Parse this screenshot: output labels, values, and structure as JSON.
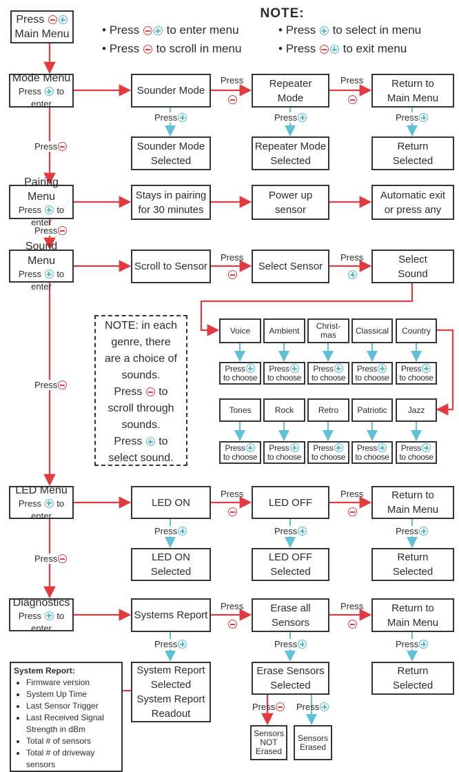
{
  "note": {
    "title": "NOTE:",
    "items": [
      {
        "pre": "Press",
        "icons": [
          "minus",
          "plus"
        ],
        "post": "to enter menu"
      },
      {
        "pre": "Press",
        "icons": [
          "plus"
        ],
        "post": "to select in menu"
      },
      {
        "pre": "Press",
        "icons": [
          "minus"
        ],
        "post": "to scroll in menu"
      },
      {
        "pre": "Press",
        "icons": [
          "minus",
          "plus"
        ],
        "post": "to exit menu"
      }
    ]
  },
  "main_menu": {
    "line1": "Press",
    "line2": "Main Menu"
  },
  "press": "Press",
  "to_enter": "to enter",
  "menus": {
    "mode": "Mode Menu",
    "pairing": "Pairing Menu",
    "sound": "Sound Menu",
    "led": "LED Menu",
    "diagnostics": "Diagnostics"
  },
  "mode_row": [
    "Sounder Mode",
    "Repeater\nMode",
    "Return to\nMain Menu"
  ],
  "mode_selected": [
    "Sounder Mode\nSelected",
    "Repeater Mode\nSelected",
    "Return\nSelected"
  ],
  "pairing_row": [
    "Stays in pairing\nfor 30 minutes",
    "Power up\nsensor",
    "Automatic exit\nor press any"
  ],
  "sound_row": [
    "Scroll to Sensor",
    "Select Sensor",
    "Select\nSound"
  ],
  "genres_row1": [
    "Voice",
    "Ambient",
    "Christ-\nmas",
    "Classical",
    "Country"
  ],
  "genres_row2": [
    "Tones",
    "Rock",
    "Retro",
    "Patriotic",
    "Jazz"
  ],
  "to_choose": "to choose",
  "genre_note": {
    "l1": "NOTE: in each\ngenre, there\nare a choice of\nsounds.",
    "l2": "to",
    "l3": "scroll through\nsounds.",
    "l4": "to",
    "l5": "select sound."
  },
  "led_row": [
    "LED ON",
    "LED OFF",
    "Return to\nMain Menu"
  ],
  "led_selected": [
    "LED ON\nSelected",
    "LED OFF\nSelected",
    "Return\nSelected"
  ],
  "diag_row": [
    "Systems Report",
    "Erase all\nSensors",
    "Return to\nMain Menu"
  ],
  "diag_selected": [
    "System Report\nSelected\nSystem Report\nReadout",
    "Erase Sensors\nSelected",
    "Return\nSelected"
  ],
  "erase_results": [
    "Sensors\nNOT\nErased",
    "Sensors\nErased"
  ],
  "system_report": {
    "title": "System Report:",
    "items": [
      "Firmware version",
      "System Up Time",
      "Last Sensor Trigger",
      "Last Received Signal Strength in dBm",
      "Total # of sensors",
      "Total # of driveway sensors"
    ]
  },
  "colors": {
    "scroll_minus": "#e23a3e",
    "select_plus": "#4fb8cf",
    "outline": "#333333"
  }
}
